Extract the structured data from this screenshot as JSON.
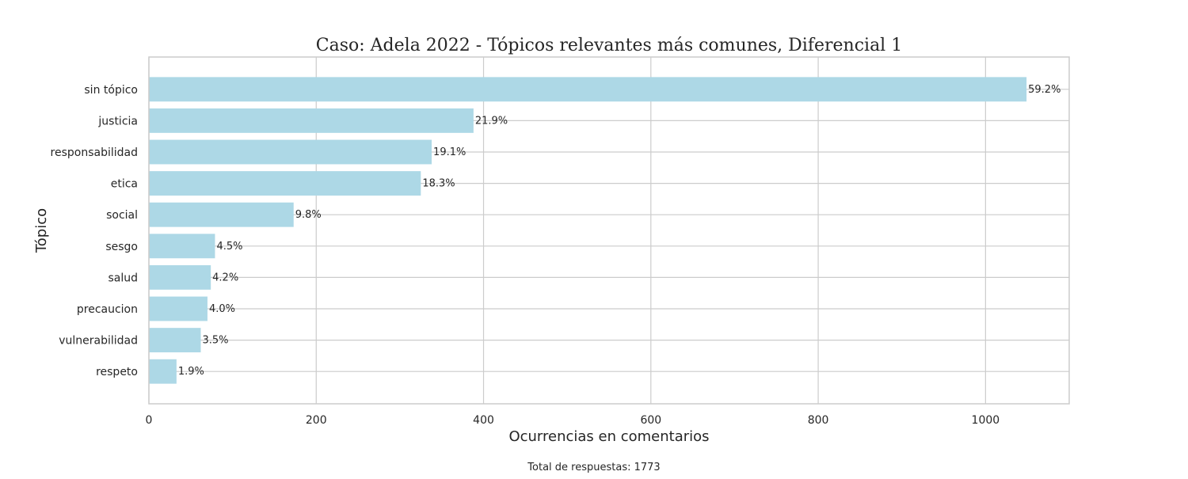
{
  "chart_data": {
    "type": "bar",
    "orientation": "horizontal",
    "title": "Caso: Adela 2022 - Tópicos relevantes más comunes, Diferencial 1",
    "xlabel": "Ocurrencias en comentarios",
    "ylabel": "Tópico",
    "xlim": [
      0,
      1100
    ],
    "xticks": [
      0,
      200,
      400,
      600,
      800,
      1000
    ],
    "grid": true,
    "bar_color": "#add8e6",
    "categories": [
      "sin tópico",
      "justicia",
      "responsabilidad",
      "etica",
      "social",
      "sesgo",
      "salud",
      "precaucion",
      "vulnerabilidad",
      "respeto"
    ],
    "values": [
      1049,
      388,
      338,
      325,
      173,
      79,
      74,
      70,
      62,
      33
    ],
    "labels": [
      "59.2%",
      "21.9%",
      "19.1%",
      "18.3%",
      "9.8%",
      "4.5%",
      "4.2%",
      "4.0%",
      "3.5%",
      "1.9%"
    ],
    "footnote": "Total de respuestas: 1773"
  }
}
